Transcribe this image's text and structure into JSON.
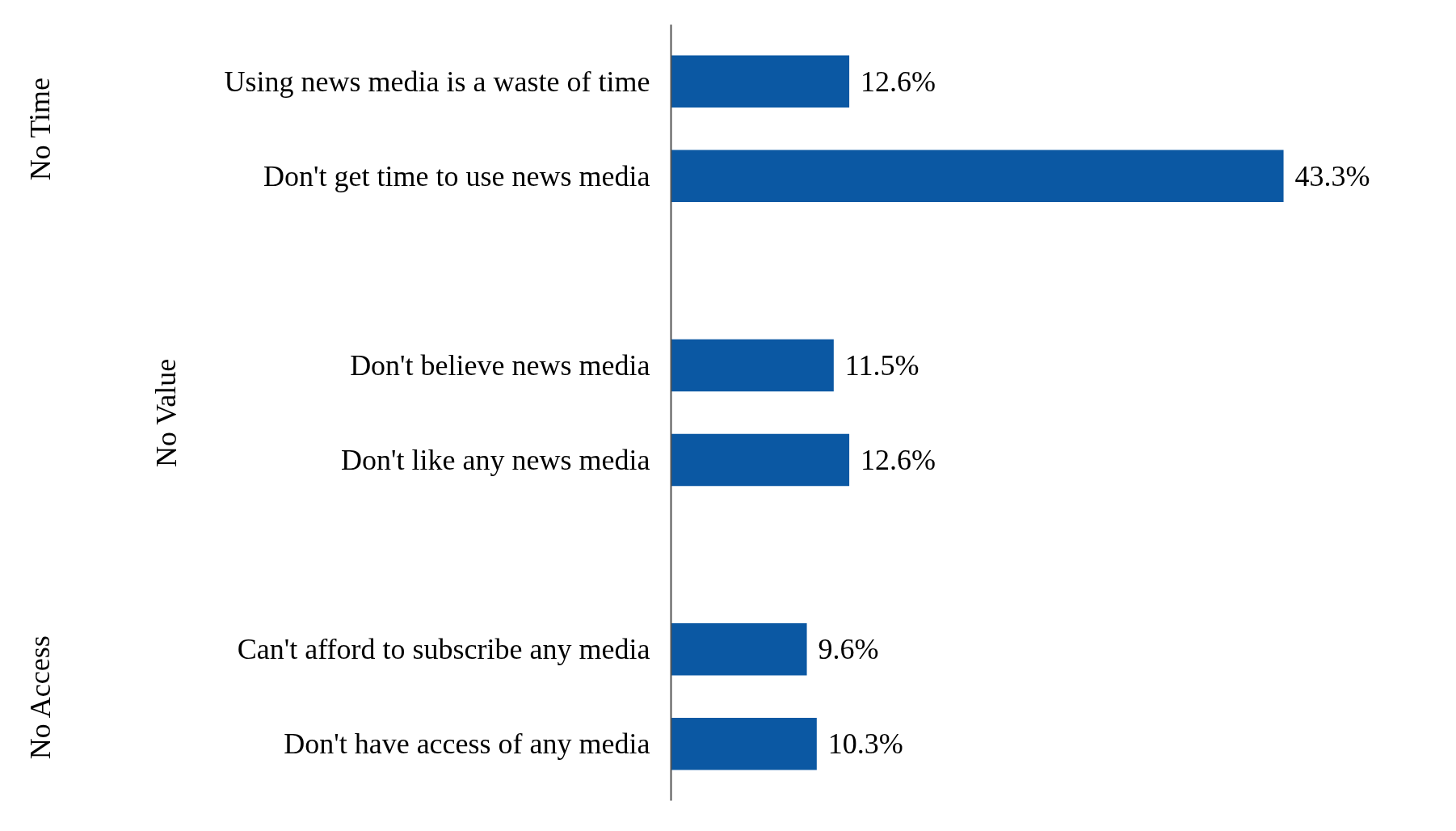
{
  "chart_data": {
    "type": "bar",
    "orientation": "horizontal",
    "categories": [
      "Using news media is a waste of time",
      "Don't get time to use news media",
      null,
      "Don't believe news media",
      "Don't like any news media",
      null,
      "Can't afford to subscribe any media",
      "Don't have access of any media"
    ],
    "values": [
      12.6,
      43.3,
      null,
      11.5,
      12.6,
      null,
      9.6,
      10.3
    ],
    "value_labels": [
      "12.6%",
      "43.3%",
      null,
      "11.5%",
      "12.6%",
      null,
      "9.6%",
      "10.3%"
    ],
    "color": "#0b58a3",
    "annotations": [
      "No Time",
      "No Value",
      "No Access"
    ],
    "grid": false
  }
}
